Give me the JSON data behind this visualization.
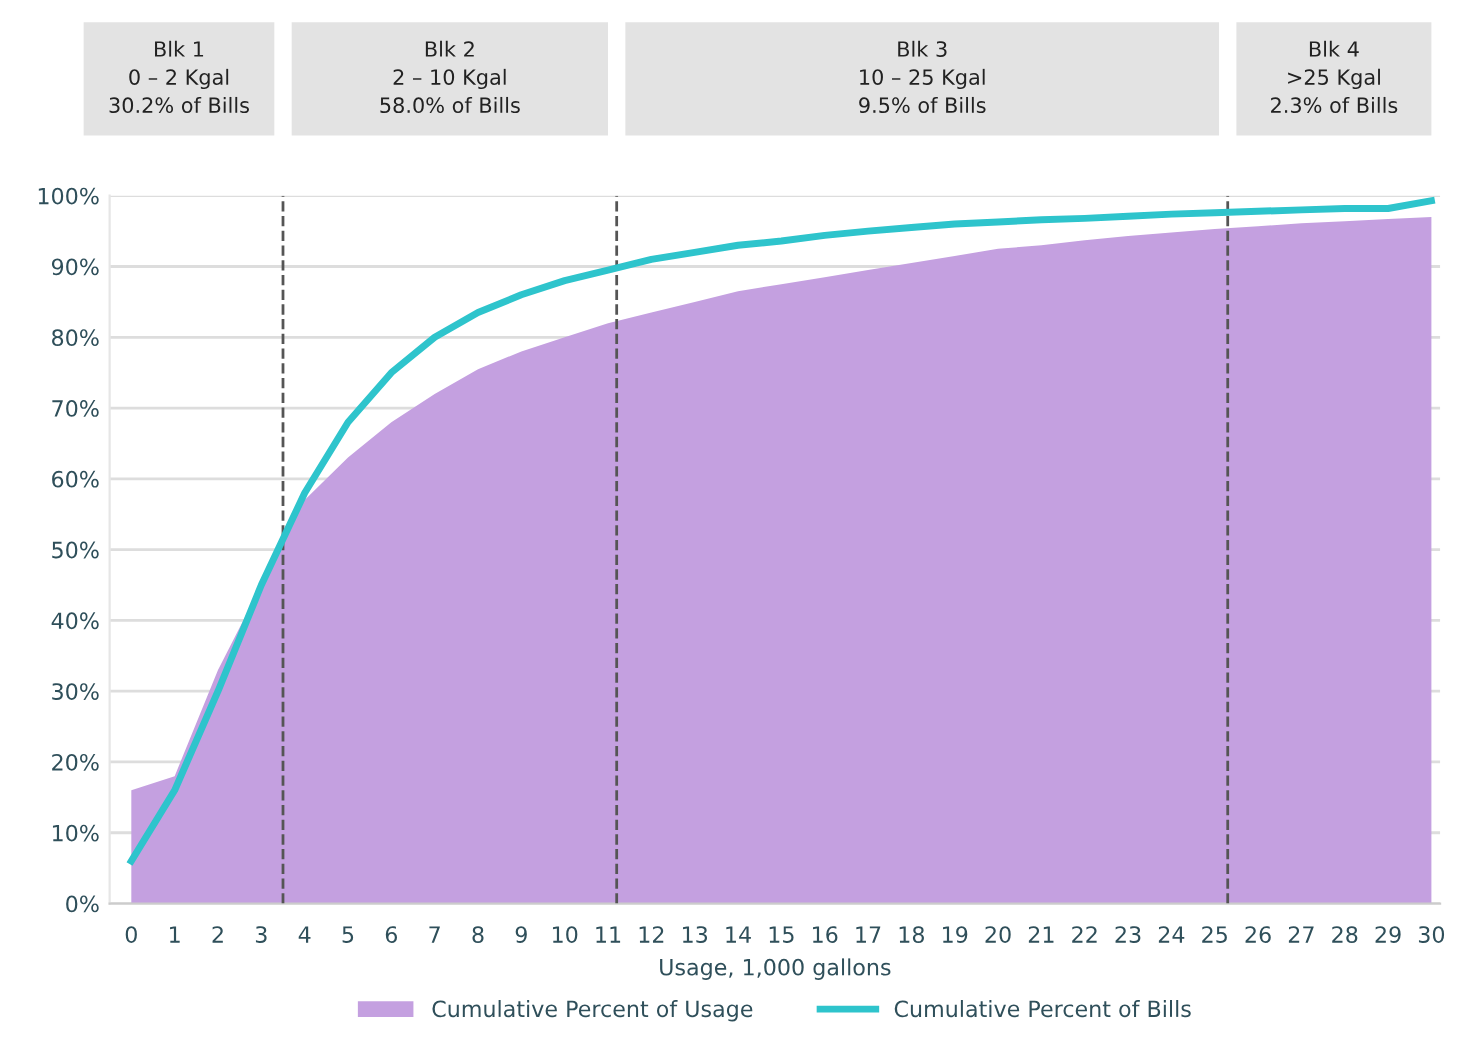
{
  "chart_data": {
    "type": "area",
    "xlabel": "Usage, 1,000 gallons",
    "x": [
      0,
      1,
      2,
      3,
      4,
      5,
      6,
      7,
      8,
      9,
      10,
      11,
      12,
      13,
      14,
      15,
      16,
      17,
      18,
      19,
      20,
      21,
      22,
      23,
      24,
      25,
      26,
      27,
      28,
      29,
      30
    ],
    "series": [
      {
        "name": "Cumulative Percent of Usage",
        "color": "#c4a0e0",
        "values": [
          16,
          18,
          33,
          45,
          57,
          63,
          68,
          72,
          75.5,
          78,
          80,
          82,
          83.5,
          85,
          86.5,
          87.5,
          88.5,
          89.5,
          90.5,
          91.5,
          92.5,
          93,
          93.7,
          94.3,
          94.8,
          95.3,
          95.7,
          96.1,
          96.4,
          96.7,
          97
        ]
      },
      {
        "name": "Cumulative Percent of Bills",
        "type": "line",
        "color": "#2ec4cc",
        "values": [
          6,
          16,
          30,
          45,
          58,
          68,
          75,
          80,
          83.5,
          86,
          88,
          89.5,
          91,
          92,
          93,
          93.6,
          94.4,
          95,
          95.5,
          96,
          96.3,
          96.6,
          96.8,
          97.1,
          97.4,
          97.6,
          97.8,
          98,
          98.2,
          98.2,
          99.3
        ]
      }
    ],
    "xlim": [
      -0.5,
      30.2
    ],
    "ylim": [
      0,
      100
    ],
    "xticks": [
      0,
      1,
      2,
      3,
      4,
      5,
      6,
      7,
      8,
      9,
      10,
      11,
      12,
      13,
      14,
      15,
      16,
      17,
      18,
      19,
      20,
      21,
      22,
      23,
      24,
      25,
      26,
      27,
      28,
      29,
      30
    ],
    "yticks": [
      {
        "value": 0,
        "label": "0%"
      },
      {
        "value": 10,
        "label": "10%"
      },
      {
        "value": 20,
        "label": "20%"
      },
      {
        "value": 30,
        "label": "30%"
      },
      {
        "value": 40,
        "label": "40%"
      },
      {
        "value": 50,
        "label": "50%"
      },
      {
        "value": 60,
        "label": "60%"
      },
      {
        "value": 70,
        "label": "70%"
      },
      {
        "value": 80,
        "label": "80%"
      },
      {
        "value": 90,
        "label": "90%"
      },
      {
        "value": 100,
        "label": "100%"
      }
    ],
    "ref_lines": [
      {
        "axis": "x",
        "value": 3.5,
        "color": "#555555",
        "line_style": "dashed"
      },
      {
        "axis": "x",
        "value": 11.2,
        "color": "#555555",
        "line_style": "dashed"
      },
      {
        "axis": "x",
        "value": 25.3,
        "color": "#555555",
        "line_style": "dashed"
      }
    ],
    "annotations": [
      "Blk 1\n0 – 2 Kgal\n30.2% of Bills",
      "Blk 2\n2 – 10 Kgal\n58.0% of Bills",
      "Blk 3\n10 – 25 Kgal\n9.5% of Bills",
      "Blk 4\n>25 Kgal\n2.3% of Bills"
    ],
    "grid": "y",
    "legend": "bottom",
    "line_style": "solid",
    "marker": "none"
  }
}
